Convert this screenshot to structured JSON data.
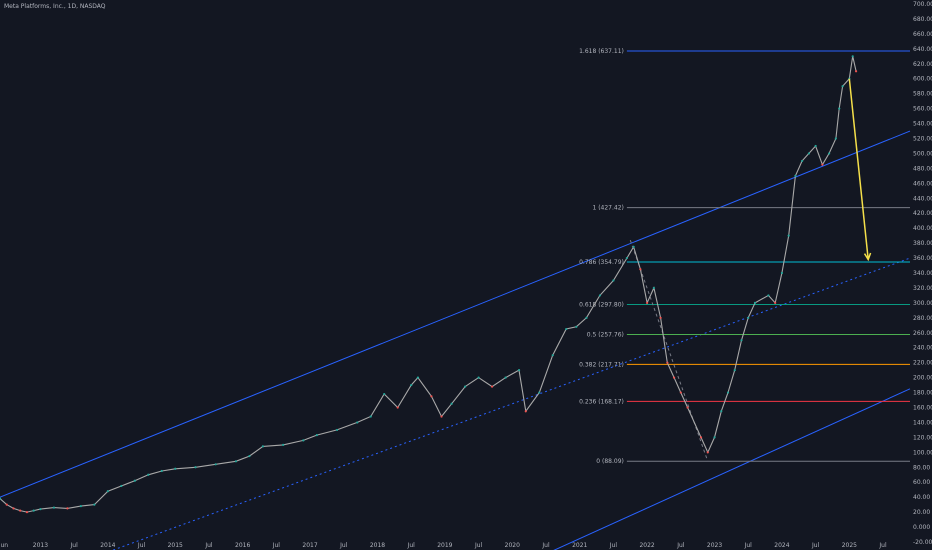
{
  "header": {
    "symbol_title": "Meta Platforms, Inc., 1D, NASDAQ"
  },
  "chart_data": {
    "type": "line",
    "title": "Meta Platforms, Inc., 1D, NASDAQ",
    "y_axis": {
      "ticks": [
        "-20.00",
        "0.000",
        "20.00",
        "40.00",
        "60.00",
        "80.00",
        "100.00",
        "120.00",
        "140.00",
        "160.00",
        "180.00",
        "200.00",
        "220.00",
        "240.00",
        "260.00",
        "280.00",
        "300.00",
        "320.00",
        "340.00",
        "360.00",
        "380.00",
        "400.00",
        "420.00",
        "440.00",
        "460.00",
        "480.00",
        "500.00",
        "520.00",
        "540.00",
        "560.00",
        "580.00",
        "600.00",
        "620.00",
        "640.00",
        "660.00",
        "680.00",
        "700.00"
      ],
      "ylim": [
        -20,
        700
      ]
    },
    "x_axis": {
      "labels": [
        "Jun",
        "2013",
        "Jul",
        "2014",
        "Jul",
        "2015",
        "Jul",
        "2016",
        "Jul",
        "2017",
        "Jul",
        "2018",
        "Jul",
        "2019",
        "Jul",
        "2020",
        "Jul",
        "2021",
        "Jul",
        "2022",
        "Jul",
        "2023",
        "Jul",
        "2024",
        "Jul",
        "2025",
        "Jul"
      ],
      "xlim": [
        2012.4,
        2025.9
      ]
    },
    "series": [
      {
        "color": "#a9a9a9",
        "x": [
          2012.4,
          2012.5,
          2012.6,
          2012.7,
          2012.8,
          2012.9,
          2013.0,
          2013.2,
          2013.4,
          2013.6,
          2013.8,
          2014.0,
          2014.2,
          2014.4,
          2014.6,
          2014.8,
          2015.0,
          2015.3,
          2015.6,
          2015.9,
          2016.1,
          2016.3,
          2016.6,
          2016.9,
          2017.1,
          2017.4,
          2017.7,
          2017.9,
          2018.1,
          2018.3,
          2018.5,
          2018.6,
          2018.8,
          2018.95,
          2019.1,
          2019.3,
          2019.5,
          2019.7,
          2019.9,
          2020.1,
          2020.2,
          2020.4,
          2020.6,
          2020.8,
          2020.95,
          2021.1,
          2021.3,
          2021.5,
          2021.7,
          2021.8,
          2021.9,
          2022.0,
          2022.1,
          2022.2,
          2022.3,
          2022.4,
          2022.5,
          2022.6,
          2022.8,
          2022.9,
          2023.0,
          2023.1,
          2023.2,
          2023.3,
          2023.4,
          2023.5,
          2023.6,
          2023.8,
          2023.9,
          2024.0,
          2024.1,
          2024.2,
          2024.3,
          2024.4,
          2024.5,
          2024.6,
          2024.7,
          2024.8,
          2024.85,
          2024.9,
          2025.0,
          2025.05,
          2025.1
        ],
        "values": [
          38,
          30,
          25,
          22,
          20,
          22,
          24,
          26,
          25,
          28,
          30,
          48,
          55,
          62,
          70,
          75,
          78,
          80,
          84,
          88,
          95,
          108,
          110,
          116,
          123,
          130,
          140,
          148,
          178,
          160,
          190,
          200,
          175,
          148,
          165,
          188,
          200,
          188,
          200,
          210,
          155,
          180,
          230,
          265,
          268,
          280,
          310,
          330,
          360,
          375,
          345,
          300,
          320,
          280,
          220,
          200,
          180,
          160,
          120,
          100,
          120,
          155,
          180,
          210,
          250,
          280,
          300,
          310,
          300,
          340,
          390,
          470,
          490,
          500,
          510,
          485,
          500,
          520,
          560,
          590,
          600,
          630,
          610
        ]
      }
    ],
    "annotations": [
      {
        "label": "0 (88.09)",
        "value": 88.09,
        "color": "#787b86"
      },
      {
        "label": "0.236 (168.17)",
        "value": 168.17,
        "color": "#f23645"
      },
      {
        "label": "0.382 (217.71)",
        "value": 217.71,
        "color": "#ff9800"
      },
      {
        "label": "0.5 (257.76)",
        "value": 257.76,
        "color": "#4caf50"
      },
      {
        "label": "0.618 (297.80)",
        "value": 297.8,
        "color": "#089981"
      },
      {
        "label": "0.786 (354.79)",
        "value": 354.79,
        "color": "#00bcd4"
      },
      {
        "label": "1 (427.42)",
        "value": 427.42,
        "color": "#787b86"
      },
      {
        "label": "1.618 (637.11)",
        "value": 637.11,
        "color": "#2962ff"
      }
    ],
    "channel": {
      "color": "#2962ff",
      "upper": {
        "x": [
          2012.4,
          2025.9
        ],
        "y": [
          40,
          530
        ]
      },
      "lower": {
        "x": [
          2020.4,
          2025.9
        ],
        "y": [
          -40,
          185
        ]
      },
      "mid": {
        "x": [
          2013.8,
          2025.9
        ],
        "y": [
          -40,
          360
        ]
      }
    },
    "projection_arrow": {
      "x": [
        2025.0,
        2025.28
      ],
      "y": [
        600,
        358
      ],
      "color": "#f5e04a"
    },
    "grid": false
  }
}
